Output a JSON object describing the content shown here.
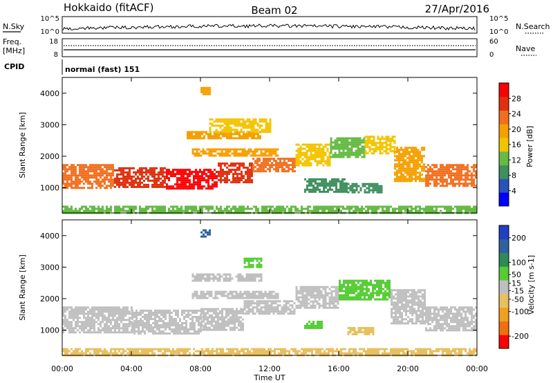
{
  "header": {
    "radar": "Hokkaido (fitACF)",
    "beam": "Beam 02",
    "date": "27/Apr/2016"
  },
  "status_panel": {
    "nsky_label": "N.Sky",
    "nsky_ticks": [
      "10^5",
      "10^0"
    ],
    "nsearch_label": "N.Search",
    "nsearch_ticks": [
      "10^5",
      "10^0"
    ],
    "freq_label": "Freq.",
    "freq_unit": "[MHz]",
    "freq_ticks": [
      "18",
      "8"
    ],
    "nave_label": "Nave",
    "nave_ticks": [
      "60",
      "0"
    ],
    "cpid_label": "CPID",
    "cpid_value": "normal (fast) 151"
  },
  "colors": {
    "power_scale": [
      "#0000ff",
      "#2a52be",
      "#3f8f5f",
      "#66bb44",
      "#f2c400",
      "#f5a000",
      "#f07020",
      "#e03010",
      "#ff0000"
    ],
    "velocity_scale": [
      "#2040c0",
      "#3060a0",
      "#2e8b57",
      "#55cc33",
      "#bfbfbf",
      "#e8c060",
      "#f0a020",
      "#f07010",
      "#ff0000"
    ]
  },
  "chart_data": [
    {
      "type": "heatmap",
      "name": "power",
      "xlabel": "Time UT",
      "ylabel": "Slant Range [km]",
      "xlim": [
        0,
        24
      ],
      "ylim": [
        200,
        4500
      ],
      "x_ticks": [
        "00:00",
        "04:00",
        "08:00",
        "12:00",
        "16:00",
        "20:00",
        "00:00"
      ],
      "y_ticks": [
        1000,
        2000,
        3000,
        4000
      ],
      "colorbar": {
        "label": "Power [dB]",
        "ticks": [
          4,
          8,
          12,
          16,
          20,
          24,
          28
        ],
        "range": [
          0,
          32
        ]
      },
      "regions": [
        {
          "t": [
            0,
            24
          ],
          "r": [
            230,
            430
          ],
          "value": 14
        },
        {
          "t": [
            0,
            3
          ],
          "r": [
            1000,
            1750
          ],
          "value": 24
        },
        {
          "t": [
            3,
            6
          ],
          "r": [
            1050,
            1650
          ],
          "value": 27
        },
        {
          "t": [
            6,
            9
          ],
          "r": [
            950,
            1600
          ],
          "value": 29
        },
        {
          "t": [
            9,
            11
          ],
          "r": [
            1150,
            1800
          ],
          "value": 26
        },
        {
          "t": [
            11,
            13.5
          ],
          "r": [
            1500,
            1950
          ],
          "value": 24
        },
        {
          "t": [
            13.5,
            15.5
          ],
          "r": [
            1700,
            2400
          ],
          "value": 16
        },
        {
          "t": [
            15.5,
            17.5
          ],
          "r": [
            2000,
            2600
          ],
          "value": 14
        },
        {
          "t": [
            17.5,
            19.2
          ],
          "r": [
            2100,
            2650
          ],
          "value": 16
        },
        {
          "t": [
            19.2,
            21
          ],
          "r": [
            1200,
            2300
          ],
          "value": 21
        },
        {
          "t": [
            21,
            24
          ],
          "r": [
            1050,
            1750
          ],
          "value": 22
        },
        {
          "t": [
            7.2,
            11.5
          ],
          "r": [
            2550,
            2800
          ],
          "value": 19
        },
        {
          "t": [
            7.5,
            12.5
          ],
          "r": [
            2050,
            2250
          ],
          "value": 18
        },
        {
          "t": [
            8.5,
            12
          ],
          "r": [
            2750,
            3200
          ],
          "value": 17
        },
        {
          "t": [
            14,
            16.5
          ],
          "r": [
            900,
            1300
          ],
          "value": 10
        },
        {
          "t": [
            16.5,
            18.5
          ],
          "r": [
            850,
            1150
          ],
          "value": 8
        },
        {
          "t": [
            8,
            8.5
          ],
          "r": [
            4000,
            4200
          ],
          "value": 20
        }
      ]
    },
    {
      "type": "heatmap",
      "name": "velocity",
      "xlabel": "Time UT",
      "ylabel": "Slant Range [km]",
      "xlim": [
        0,
        24
      ],
      "ylim": [
        200,
        4500
      ],
      "x_ticks": [
        "00:00",
        "04:00",
        "08:00",
        "12:00",
        "16:00",
        "20:00",
        "00:00"
      ],
      "y_ticks": [
        1000,
        2000,
        3000,
        4000
      ],
      "colorbar": {
        "label": "Velocity [m s-1]",
        "ticks": [
          200,
          100,
          50,
          15,
          -15,
          -50,
          -100,
          -200
        ],
        "range": [
          -250,
          250
        ]
      },
      "regions": [
        {
          "t": [
            0,
            24
          ],
          "r": [
            230,
            430
          ],
          "value": -30
        },
        {
          "t": [
            0,
            4
          ],
          "r": [
            950,
            1750
          ],
          "value": 0
        },
        {
          "t": [
            4,
            8
          ],
          "r": [
            900,
            1650
          ],
          "value": 0
        },
        {
          "t": [
            8,
            10.5
          ],
          "r": [
            1000,
            1700
          ],
          "value": -25
        },
        {
          "t": [
            10.5,
            13.5
          ],
          "r": [
            1500,
            1950
          ],
          "value": 0
        },
        {
          "t": [
            13.5,
            16
          ],
          "r": [
            1700,
            2400
          ],
          "value": 0
        },
        {
          "t": [
            16,
            19
          ],
          "r": [
            2000,
            2600
          ],
          "value": 30
        },
        {
          "t": [
            19,
            21
          ],
          "r": [
            1200,
            2300
          ],
          "value": 0
        },
        {
          "t": [
            21,
            24
          ],
          "r": [
            1000,
            1750
          ],
          "value": 0
        },
        {
          "t": [
            7.5,
            11.5
          ],
          "r": [
            2550,
            2800
          ],
          "value": -5
        },
        {
          "t": [
            7.5,
            12.5
          ],
          "r": [
            2050,
            2250
          ],
          "value": -5
        },
        {
          "t": [
            10.5,
            11.5
          ],
          "r": [
            3000,
            3300
          ],
          "value": 35
        },
        {
          "t": [
            14,
            15
          ],
          "r": [
            1050,
            1300
          ],
          "value": 40
        },
        {
          "t": [
            16.5,
            18
          ],
          "r": [
            850,
            1100
          ],
          "value": -40
        },
        {
          "t": [
            8,
            8.5
          ],
          "r": [
            4000,
            4200
          ],
          "value": 150
        }
      ]
    }
  ]
}
